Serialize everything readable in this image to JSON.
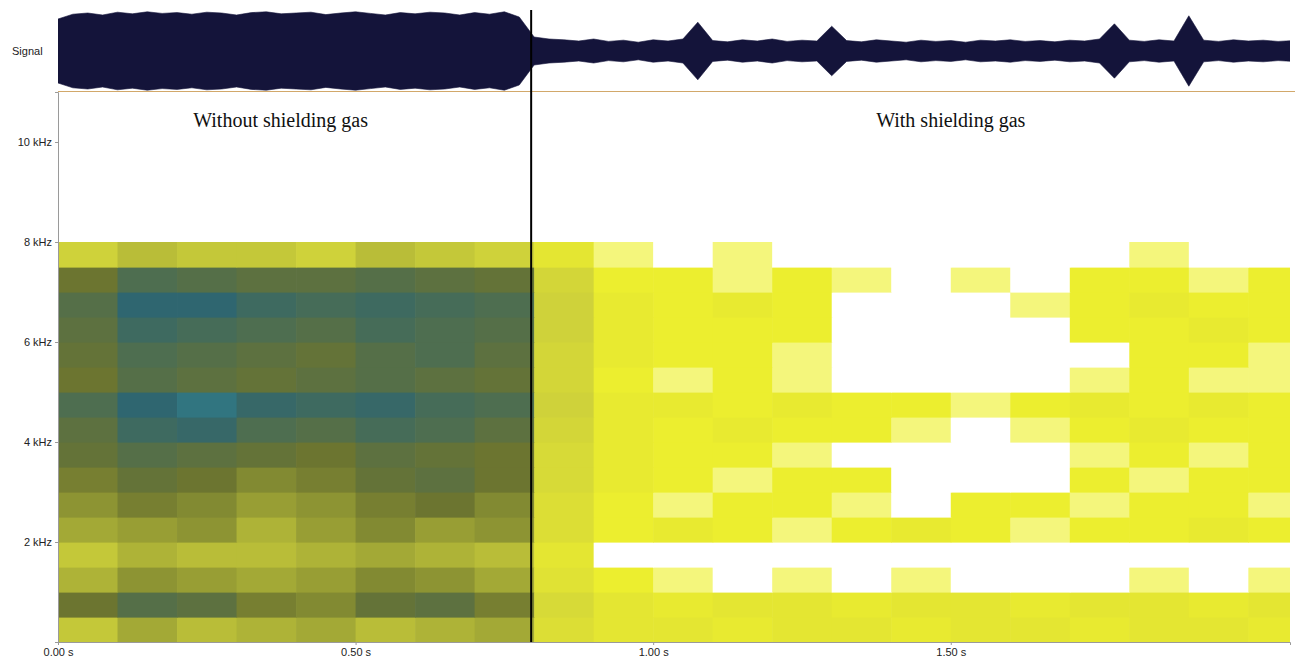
{
  "chart_data": [
    {
      "type": "waveform",
      "ylabel": "Signal",
      "color": "#14143a",
      "xlim": [
        0,
        2.07
      ],
      "ylim": [
        -1,
        1
      ],
      "tick_labels": false,
      "x": [
        0,
        0.025,
        0.05,
        0.075,
        0.1,
        0.125,
        0.15,
        0.175,
        0.2,
        0.225,
        0.25,
        0.275,
        0.3,
        0.325,
        0.35,
        0.375,
        0.4,
        0.425,
        0.45,
        0.475,
        0.5,
        0.525,
        0.55,
        0.575,
        0.6,
        0.625,
        0.65,
        0.675,
        0.7,
        0.725,
        0.75,
        0.775,
        0.8,
        0.825,
        0.85,
        0.875,
        0.9,
        0.925,
        0.95,
        0.975,
        1.0,
        1.025,
        1.05,
        1.075,
        1.1,
        1.125,
        1.15,
        1.175,
        1.2,
        1.225,
        1.25,
        1.275,
        1.3,
        1.325,
        1.35,
        1.375,
        1.4,
        1.425,
        1.45,
        1.475,
        1.5,
        1.525,
        1.55,
        1.575,
        1.6,
        1.625,
        1.65,
        1.675,
        1.7,
        1.725,
        1.75,
        1.775,
        1.8,
        1.825,
        1.85,
        1.875,
        1.9,
        1.925,
        1.95,
        1.975,
        2.0,
        2.025,
        2.05,
        2.075
      ],
      "values": [
        0.8,
        0.92,
        0.95,
        0.9,
        0.97,
        0.93,
        0.98,
        0.94,
        0.96,
        0.92,
        0.97,
        0.95,
        0.9,
        0.96,
        0.98,
        0.93,
        0.95,
        0.97,
        0.91,
        0.95,
        0.98,
        0.94,
        0.9,
        0.96,
        0.93,
        0.97,
        0.95,
        0.9,
        0.96,
        0.92,
        0.98,
        0.85,
        0.35,
        0.3,
        0.28,
        0.25,
        0.3,
        0.24,
        0.27,
        0.22,
        0.28,
        0.25,
        0.3,
        0.72,
        0.26,
        0.23,
        0.28,
        0.25,
        0.3,
        0.24,
        0.27,
        0.25,
        0.62,
        0.26,
        0.23,
        0.28,
        0.25,
        0.22,
        0.27,
        0.24,
        0.26,
        0.22,
        0.27,
        0.25,
        0.28,
        0.24,
        0.26,
        0.23,
        0.27,
        0.25,
        0.3,
        0.68,
        0.27,
        0.24,
        0.28,
        0.25,
        0.88,
        0.27,
        0.24,
        0.28,
        0.25,
        0.27,
        0.24,
        0.26
      ]
    },
    {
      "type": "heatmap",
      "xlim": [
        0,
        2.07
      ],
      "ylim": [
        0,
        11
      ],
      "xticks": [
        {
          "value": 0,
          "label": "0.00 s"
        },
        {
          "value": 0.5,
          "label": "0.50 s"
        },
        {
          "value": 1,
          "label": "1.00 s"
        },
        {
          "value": 1.5,
          "label": "1.50 s"
        }
      ],
      "yticks": [
        {
          "value": 2,
          "label": "2 kHz"
        },
        {
          "value": 4,
          "label": "4 kHz"
        },
        {
          "value": 6,
          "label": "6 kHz"
        },
        {
          "value": 8,
          "label": "8 kHz"
        },
        {
          "value": 10,
          "label": "10 kHz"
        }
      ],
      "x_edges": [
        0,
        0.1,
        0.2,
        0.3,
        0.4,
        0.5,
        0.6,
        0.7,
        0.8,
        0.9,
        1.0,
        1.1,
        1.2,
        1.3,
        1.4,
        1.5,
        1.6,
        1.7,
        1.8,
        1.9,
        2.0,
        2.1
      ],
      "y_edges": [
        0,
        0.5,
        1,
        1.5,
        2,
        2.5,
        3,
        3.5,
        4,
        4.5,
        5,
        5.5,
        6,
        6.5,
        7,
        7.5,
        8
      ],
      "zlim": [
        0,
        4
      ],
      "z": [
        [
          1.6,
          1.9,
          1.7,
          1.8,
          1.9,
          1.7,
          1.8,
          1.9,
          1.2,
          1.0,
          1.0,
          0.9,
          1.0,
          1.0,
          0.9,
          1.0,
          1.0,
          0.9,
          1.0,
          1.0,
          0.9
        ],
        [
          2.4,
          2.7,
          2.6,
          2.3,
          2.2,
          2.5,
          2.6,
          2.3,
          1.3,
          1.0,
          0.9,
          1.0,
          1.0,
          0.9,
          1.0,
          1.0,
          0.9,
          1.0,
          1.0,
          0.9,
          1.0
        ],
        [
          1.8,
          2.1,
          2.0,
          1.9,
          2.0,
          2.2,
          2.1,
          1.9,
          1.1,
          0.8,
          0.7,
          0.6,
          0.7,
          0.6,
          0.7,
          0.6,
          0.5,
          0.6,
          0.7,
          0.6,
          0.7
        ],
        [
          1.6,
          1.8,
          1.7,
          1.7,
          1.8,
          1.9,
          1.8,
          1.7,
          1.0,
          0.4,
          0.3,
          0.4,
          0.3,
          0.4,
          0.3,
          0.4,
          0.3,
          0.4,
          0.3,
          0.4,
          0.3
        ],
        [
          1.9,
          2.0,
          2.1,
          1.8,
          2.0,
          2.2,
          2.0,
          2.1,
          1.2,
          0.8,
          0.9,
          0.8,
          0.7,
          0.8,
          0.9,
          0.8,
          0.7,
          0.8,
          0.8,
          0.9,
          0.8
        ],
        [
          2.1,
          2.3,
          2.2,
          2.0,
          2.1,
          2.3,
          2.4,
          2.2,
          1.2,
          0.8,
          0.7,
          0.8,
          0.8,
          0.7,
          0.6,
          0.8,
          0.8,
          0.7,
          0.8,
          0.8,
          0.7
        ],
        [
          2.3,
          2.5,
          2.4,
          2.2,
          2.3,
          2.5,
          2.6,
          2.4,
          1.3,
          0.9,
          0.8,
          0.7,
          0.8,
          0.8,
          0.5,
          0.4,
          0.6,
          0.8,
          0.7,
          0.8,
          0.8
        ],
        [
          2.5,
          2.7,
          2.6,
          2.5,
          2.4,
          2.6,
          2.5,
          2.4,
          1.3,
          0.9,
          0.8,
          0.8,
          0.7,
          0.6,
          0.5,
          0.4,
          0.5,
          0.7,
          0.8,
          0.7,
          0.8
        ],
        [
          2.6,
          3.0,
          3.1,
          2.8,
          2.7,
          2.9,
          2.8,
          2.6,
          1.4,
          0.9,
          0.8,
          0.9,
          0.8,
          0.8,
          0.7,
          0.6,
          0.7,
          0.8,
          0.9,
          0.8,
          0.8
        ],
        [
          2.8,
          3.2,
          3.3,
          3.1,
          3.0,
          3.1,
          2.9,
          2.8,
          1.5,
          0.9,
          0.9,
          0.8,
          0.9,
          0.8,
          0.8,
          0.7,
          0.8,
          0.9,
          0.8,
          0.9,
          0.8
        ],
        [
          2.4,
          2.7,
          2.6,
          2.5,
          2.6,
          2.7,
          2.6,
          2.5,
          1.4,
          0.8,
          0.7,
          0.8,
          0.7,
          0.6,
          0.5,
          0.4,
          0.5,
          0.7,
          0.8,
          0.7,
          0.7
        ],
        [
          2.5,
          2.8,
          2.7,
          2.6,
          2.5,
          2.7,
          2.8,
          2.6,
          1.4,
          0.9,
          0.8,
          0.8,
          0.7,
          0.6,
          0.4,
          0.4,
          0.5,
          0.6,
          0.8,
          0.8,
          0.7
        ],
        [
          2.6,
          3.0,
          2.9,
          2.8,
          2.7,
          2.9,
          2.8,
          2.7,
          1.5,
          0.9,
          0.8,
          0.8,
          0.8,
          0.6,
          0.5,
          0.5,
          0.6,
          0.8,
          0.8,
          0.9,
          0.8
        ],
        [
          2.7,
          3.2,
          3.2,
          3.0,
          2.9,
          3.0,
          2.9,
          2.8,
          1.5,
          0.9,
          0.8,
          0.9,
          0.8,
          0.6,
          0.5,
          0.6,
          0.7,
          0.8,
          0.9,
          0.8,
          0.8
        ],
        [
          2.4,
          2.8,
          2.7,
          2.6,
          2.6,
          2.7,
          2.6,
          2.5,
          1.4,
          0.8,
          0.8,
          0.7,
          0.8,
          0.7,
          0.6,
          0.7,
          0.6,
          0.8,
          0.8,
          0.7,
          0.8
        ],
        [
          1.5,
          1.7,
          1.6,
          1.6,
          1.5,
          1.7,
          1.6,
          1.5,
          1.0,
          0.7,
          0.6,
          0.7,
          0.6,
          0.5,
          0.4,
          0.5,
          0.4,
          0.6,
          0.7,
          0.6,
          0.5
        ]
      ],
      "vlines": [
        0.795
      ],
      "annotations": [
        {
          "text": "Without shielding gas",
          "x": 0.374,
          "y": 10.3
        },
        {
          "text": "With shielding gas",
          "x": 1.5,
          "y": 10.3
        }
      ]
    }
  ]
}
